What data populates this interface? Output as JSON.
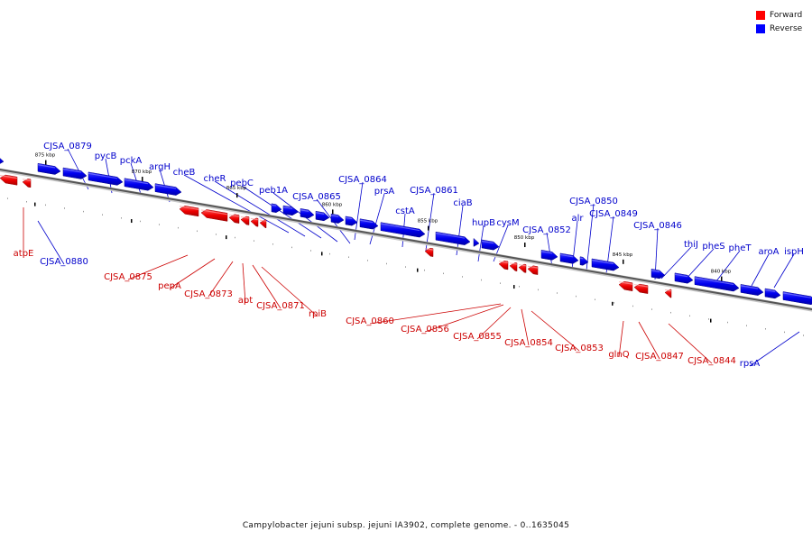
{
  "legend": {
    "forward_label": "Forward",
    "reverse_label": "Reverse",
    "forward_color": "#ff0000",
    "reverse_color": "#0000ff"
  },
  "caption": "Campylobacter jejuni subsp. jejuni IA3902, complete genome. - 0..1635045",
  "ticks": [
    "875 kbp",
    "870 kbp",
    "865 kbp",
    "860 kbp",
    "855 kbp",
    "850 kbp",
    "845 kbp",
    "840 kbp"
  ],
  "genes": {
    "forward": [
      "atpE",
      "CJSA_0875",
      "pepA",
      "CJSA_0873",
      "apt",
      "CJSA_0871",
      "rpiB",
      "CJSA_0860",
      "CJSA_0856",
      "CJSA_0855",
      "CJSA_0854",
      "CJSA_0853",
      "glnQ",
      "CJSA_0847",
      "CJSA_0844"
    ],
    "reverse": [
      "CJSA_0880",
      "CJSA_0879",
      "pycB",
      "pckA",
      "argH",
      "cheB",
      "cheR",
      "pebC",
      "peb1A",
      "CJSA_0865",
      "CJSA_0864",
      "prsA",
      "cstA",
      "CJSA_0861",
      "ciaB",
      "hupB",
      "cysM",
      "CJSA_0852",
      "alr",
      "CJSA_0850",
      "CJSA_0849",
      "CJSA_0846",
      "thiJ",
      "pheS",
      "pheT",
      "aroA",
      "ispH",
      "rpsA"
    ]
  }
}
